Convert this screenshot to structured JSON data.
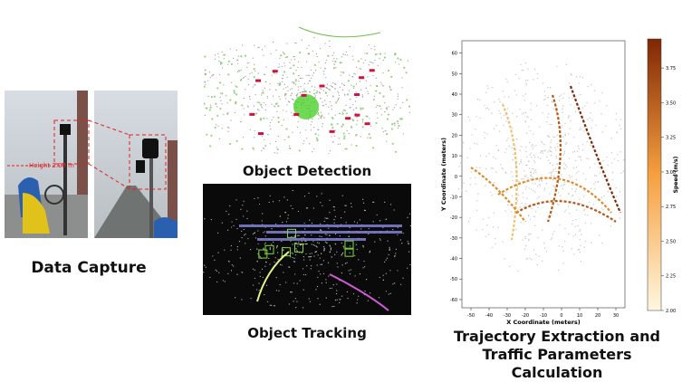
{
  "panels": {
    "capture": {
      "caption": "Data Capture",
      "annotation": "Height 2.05 m"
    },
    "detection": {
      "caption": "Object Detection"
    },
    "tracking": {
      "caption": "Object Tracking"
    },
    "trajectory": {
      "caption": "Trajectory Extraction and Traffic Parameters Calculation",
      "chart_data": {
        "type": "scatter",
        "xlabel": "X Coordinate (meters)",
        "ylabel": "Y Coordinate (meters)",
        "xlim": [
          -55,
          35
        ],
        "xticks": [
          -50,
          -40,
          -30,
          -20,
          -10,
          0,
          10,
          20,
          30
        ],
        "ylim": [
          -64,
          66
        ],
        "yticks": [
          60,
          50,
          40,
          30,
          20,
          10,
          0,
          -10,
          -20,
          -30,
          -40,
          -50,
          -60
        ],
        "colorbar_label": "Speed (m/s)",
        "clim": [
          2.0,
          3.96
        ],
        "cticks": [
          {
            "value": 2.0,
            "label": "2.00"
          },
          2.25,
          {
            "value": 2.5,
            "label": "2.50"
          },
          2.75,
          {
            "value": 3.0,
            "label": "3.00"
          },
          3.25,
          {
            "value": 3.5,
            "label": "3.50"
          },
          3.75
        ]
      }
    }
  }
}
